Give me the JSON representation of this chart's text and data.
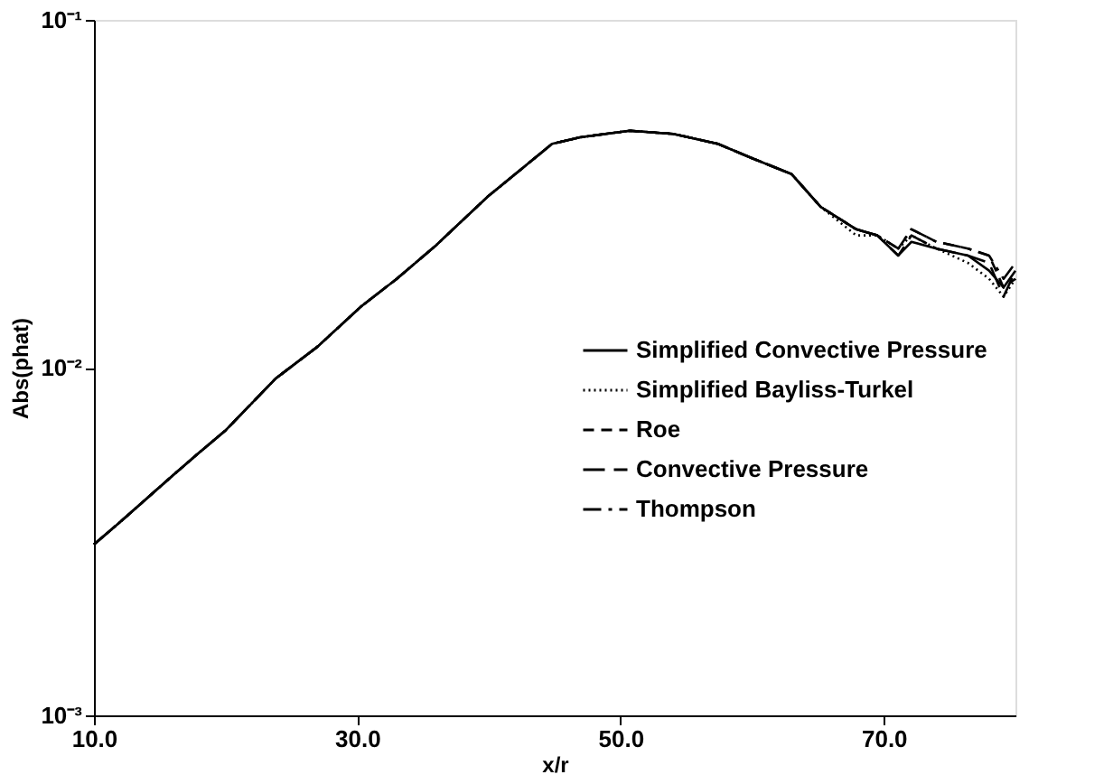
{
  "chart_data": {
    "type": "line",
    "xlabel": "x/r",
    "ylabel": "Abs(phat)",
    "log": "y",
    "grid": false,
    "legend": "right",
    "marker": "none",
    "xlim": [
      10,
      80
    ],
    "xticks": [
      {
        "value": 10,
        "label": "10.0"
      },
      {
        "value": 30,
        "label": "30.0"
      },
      {
        "value": 50,
        "label": "50.0"
      },
      {
        "value": 70,
        "label": "70.0"
      }
    ],
    "ylim": [
      0.001,
      0.1
    ],
    "yticks": [
      {
        "value": 0.001,
        "label": "10⁻³"
      },
      {
        "value": 0.01,
        "label": "10⁻²"
      },
      {
        "value": 0.1,
        "label": "10⁻¹"
      }
    ],
    "x": [
      10,
      12,
      14,
      16,
      18,
      20,
      23.8,
      27,
      30.3,
      33,
      36,
      39.9,
      42,
      44.8,
      47,
      50.7,
      54,
      57.4,
      60,
      63,
      65.2,
      67.9,
      69.5,
      71.1,
      72.1,
      74,
      76.4,
      78,
      79.1,
      80
    ],
    "series": [
      {
        "name": "Simplified Convective Pressure",
        "color": "#000000",
        "line_style": "solid",
        "values": [
          0.0031,
          0.0036,
          0.0042,
          0.0049,
          0.0057,
          0.0066,
          0.0093,
          0.0115,
          0.015,
          0.018,
          0.0225,
          0.031,
          0.036,
          0.044,
          0.046,
          0.048,
          0.047,
          0.044,
          0.04,
          0.036,
          0.029,
          0.025,
          0.024,
          0.021,
          0.023,
          0.022,
          0.021,
          0.019,
          0.017,
          0.019
        ]
      },
      {
        "name": "Simplified Bayliss-Turkel",
        "color": "#000000",
        "line_style": "dotted",
        "values": [
          0.0031,
          0.0036,
          0.0042,
          0.0049,
          0.0057,
          0.0066,
          0.0093,
          0.0115,
          0.015,
          0.018,
          0.0225,
          0.031,
          0.036,
          0.044,
          0.046,
          0.048,
          0.047,
          0.044,
          0.04,
          0.036,
          0.029,
          0.024,
          0.024,
          0.022,
          0.024,
          0.022,
          0.02,
          0.018,
          0.016,
          0.018
        ]
      },
      {
        "name": "Roe",
        "color": "#000000",
        "line_style": "dashed",
        "values": [
          0.0031,
          0.0036,
          0.0042,
          0.0049,
          0.0057,
          0.0066,
          0.0093,
          0.0115,
          0.015,
          0.018,
          0.0225,
          0.031,
          0.036,
          0.044,
          0.046,
          0.048,
          0.047,
          0.044,
          0.04,
          0.036,
          0.029,
          0.025,
          0.024,
          0.022,
          0.025,
          0.023,
          0.022,
          0.021,
          0.017,
          0.018
        ]
      },
      {
        "name": "Convective Pressure",
        "color": "#000000",
        "line_style": "dashed",
        "values": [
          0.0031,
          0.0036,
          0.0042,
          0.0049,
          0.0057,
          0.0066,
          0.0093,
          0.0115,
          0.015,
          0.018,
          0.0225,
          0.031,
          0.036,
          0.044,
          0.046,
          0.048,
          0.047,
          0.044,
          0.04,
          0.036,
          0.029,
          0.025,
          0.024,
          0.021,
          0.024,
          0.022,
          0.021,
          0.02,
          0.016,
          0.019
        ]
      },
      {
        "name": "Thompson",
        "color": "#000000",
        "line_style": "dashed",
        "values": [
          0.0031,
          0.0036,
          0.0042,
          0.0049,
          0.0057,
          0.0066,
          0.0093,
          0.0115,
          0.015,
          0.018,
          0.0225,
          0.031,
          0.036,
          0.044,
          0.046,
          0.048,
          0.047,
          0.044,
          0.04,
          0.036,
          0.029,
          0.025,
          0.024,
          0.022,
          0.025,
          0.023,
          0.022,
          0.021,
          0.018,
          0.02
        ]
      }
    ]
  }
}
